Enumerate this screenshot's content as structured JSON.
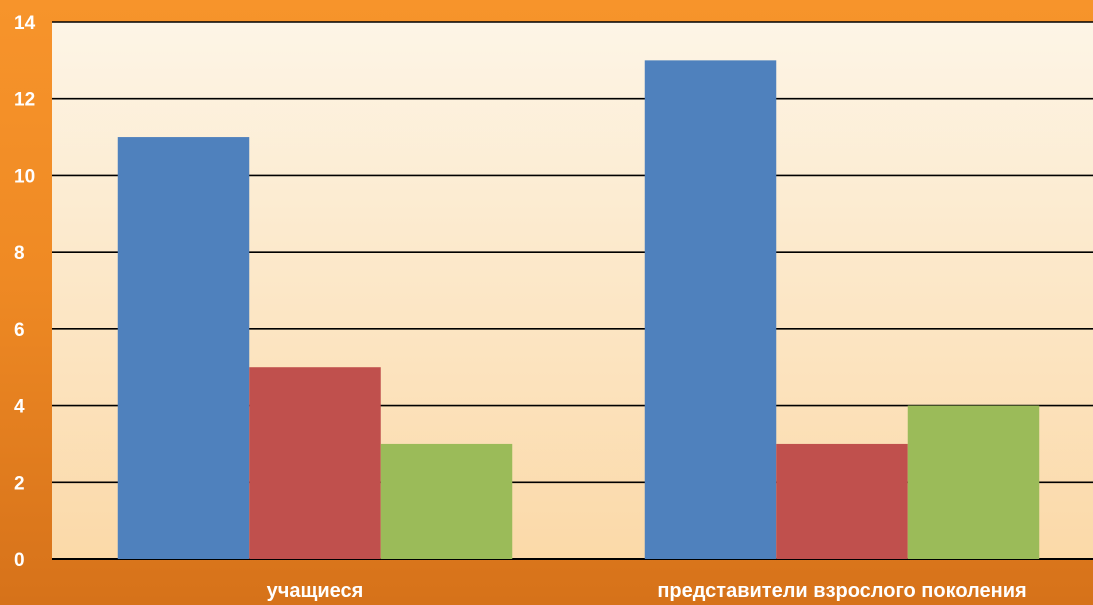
{
  "chart_data": {
    "type": "bar",
    "categories": [
      "учащиеся",
      "представители взрослого поколения"
    ],
    "series": [
      {
        "values": [
          11,
          13
        ],
        "color": "#4f81bd"
      },
      {
        "values": [
          5,
          3
        ],
        "color": "#c0504d"
      },
      {
        "values": [
          3,
          4
        ],
        "color": "#9bbb59"
      }
    ],
    "yticks": [
      0,
      2,
      4,
      6,
      8,
      10,
      12,
      14
    ],
    "ylim": [
      0,
      14
    ],
    "grid": true,
    "legend": "none",
    "plot_background": [
      "#fdf5e6",
      "#fbd9a8"
    ],
    "gridline_color": "#000000"
  }
}
